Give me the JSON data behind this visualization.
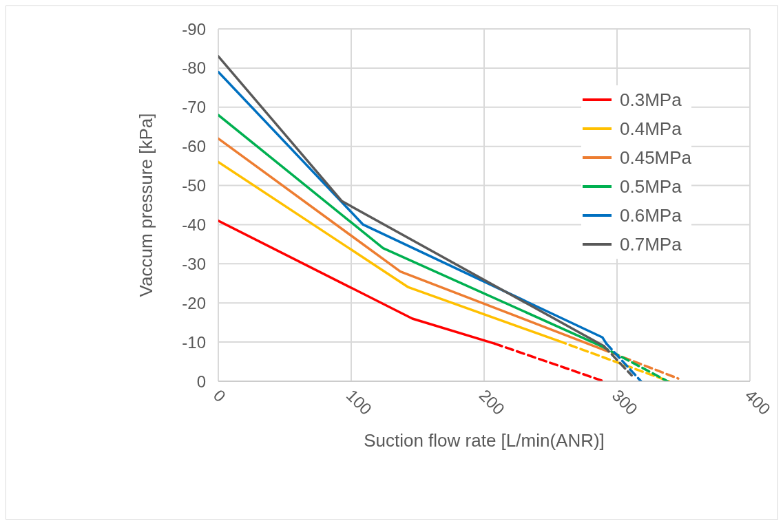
{
  "chart_data": {
    "type": "line",
    "xlabel": "Suction flow rate [L/min(ANR)]",
    "ylabel": "Vaccum pressure [kPa]",
    "xlim": [
      0,
      400
    ],
    "xticks": [
      0,
      100,
      200,
      300,
      400
    ],
    "ylim": [
      0,
      -90
    ],
    "yticks": [
      0,
      -10,
      -20,
      -30,
      -40,
      -50,
      -60,
      -70,
      -80,
      -90
    ],
    "grid": true,
    "legend": "top right",
    "marker": "none",
    "series": [
      {
        "name": "0.3MPa",
        "color": "#ff0000",
        "line_style": "solid",
        "x": [
          0,
          146,
          208
        ],
        "values": [
          -41,
          -16,
          -9.6
        ]
      },
      {
        "name": "0.4MPa",
        "color": "#ffc000",
        "line_style": "solid",
        "x": [
          0,
          143,
          256
        ],
        "values": [
          -56,
          -24,
          -10.3
        ]
      },
      {
        "name": "0.45MPa",
        "color": "#ed7d31",
        "line_style": "solid",
        "x": [
          0,
          137,
          288
        ],
        "values": [
          -62,
          -28,
          -8.3
        ]
      },
      {
        "name": "0.5MPa",
        "color": "#00b050",
        "line_style": "solid",
        "x": [
          0,
          124,
          288
        ],
        "values": [
          -68,
          -34,
          -9
        ]
      },
      {
        "name": "0.6MPa",
        "color": "#0070c0",
        "line_style": "solid",
        "x": [
          0,
          109,
          289,
          292
        ],
        "values": [
          -79,
          -40,
          -11.2,
          -9.6
        ]
      },
      {
        "name": "0.7MPa",
        "color": "#595959",
        "line_style": "solid",
        "x": [
          0,
          93,
          290
        ],
        "values": [
          -83,
          -46,
          -9
        ]
      },
      {
        "color": "#ff0000",
        "line_style": "dashed",
        "x": [
          208,
          290
        ],
        "values": [
          -9.6,
          0
        ]
      },
      {
        "color": "#ffc000",
        "line_style": "dashed",
        "x": [
          256,
          339
        ],
        "values": [
          -10.3,
          0
        ]
      },
      {
        "color": "#ed7d31",
        "line_style": "dashed",
        "x": [
          288,
          346
        ],
        "values": [
          -8.3,
          -0.7
        ]
      },
      {
        "color": "#00b050",
        "line_style": "dashed",
        "x": [
          288,
          338
        ],
        "values": [
          -9,
          0
        ]
      },
      {
        "color": "#0070c0",
        "line_style": "dashed",
        "x": [
          292,
          318
        ],
        "values": [
          -9.6,
          0
        ]
      },
      {
        "color": "#595959",
        "line_style": "dashed",
        "x": [
          290,
          311
        ],
        "values": [
          -9,
          -1.5
        ]
      }
    ]
  }
}
